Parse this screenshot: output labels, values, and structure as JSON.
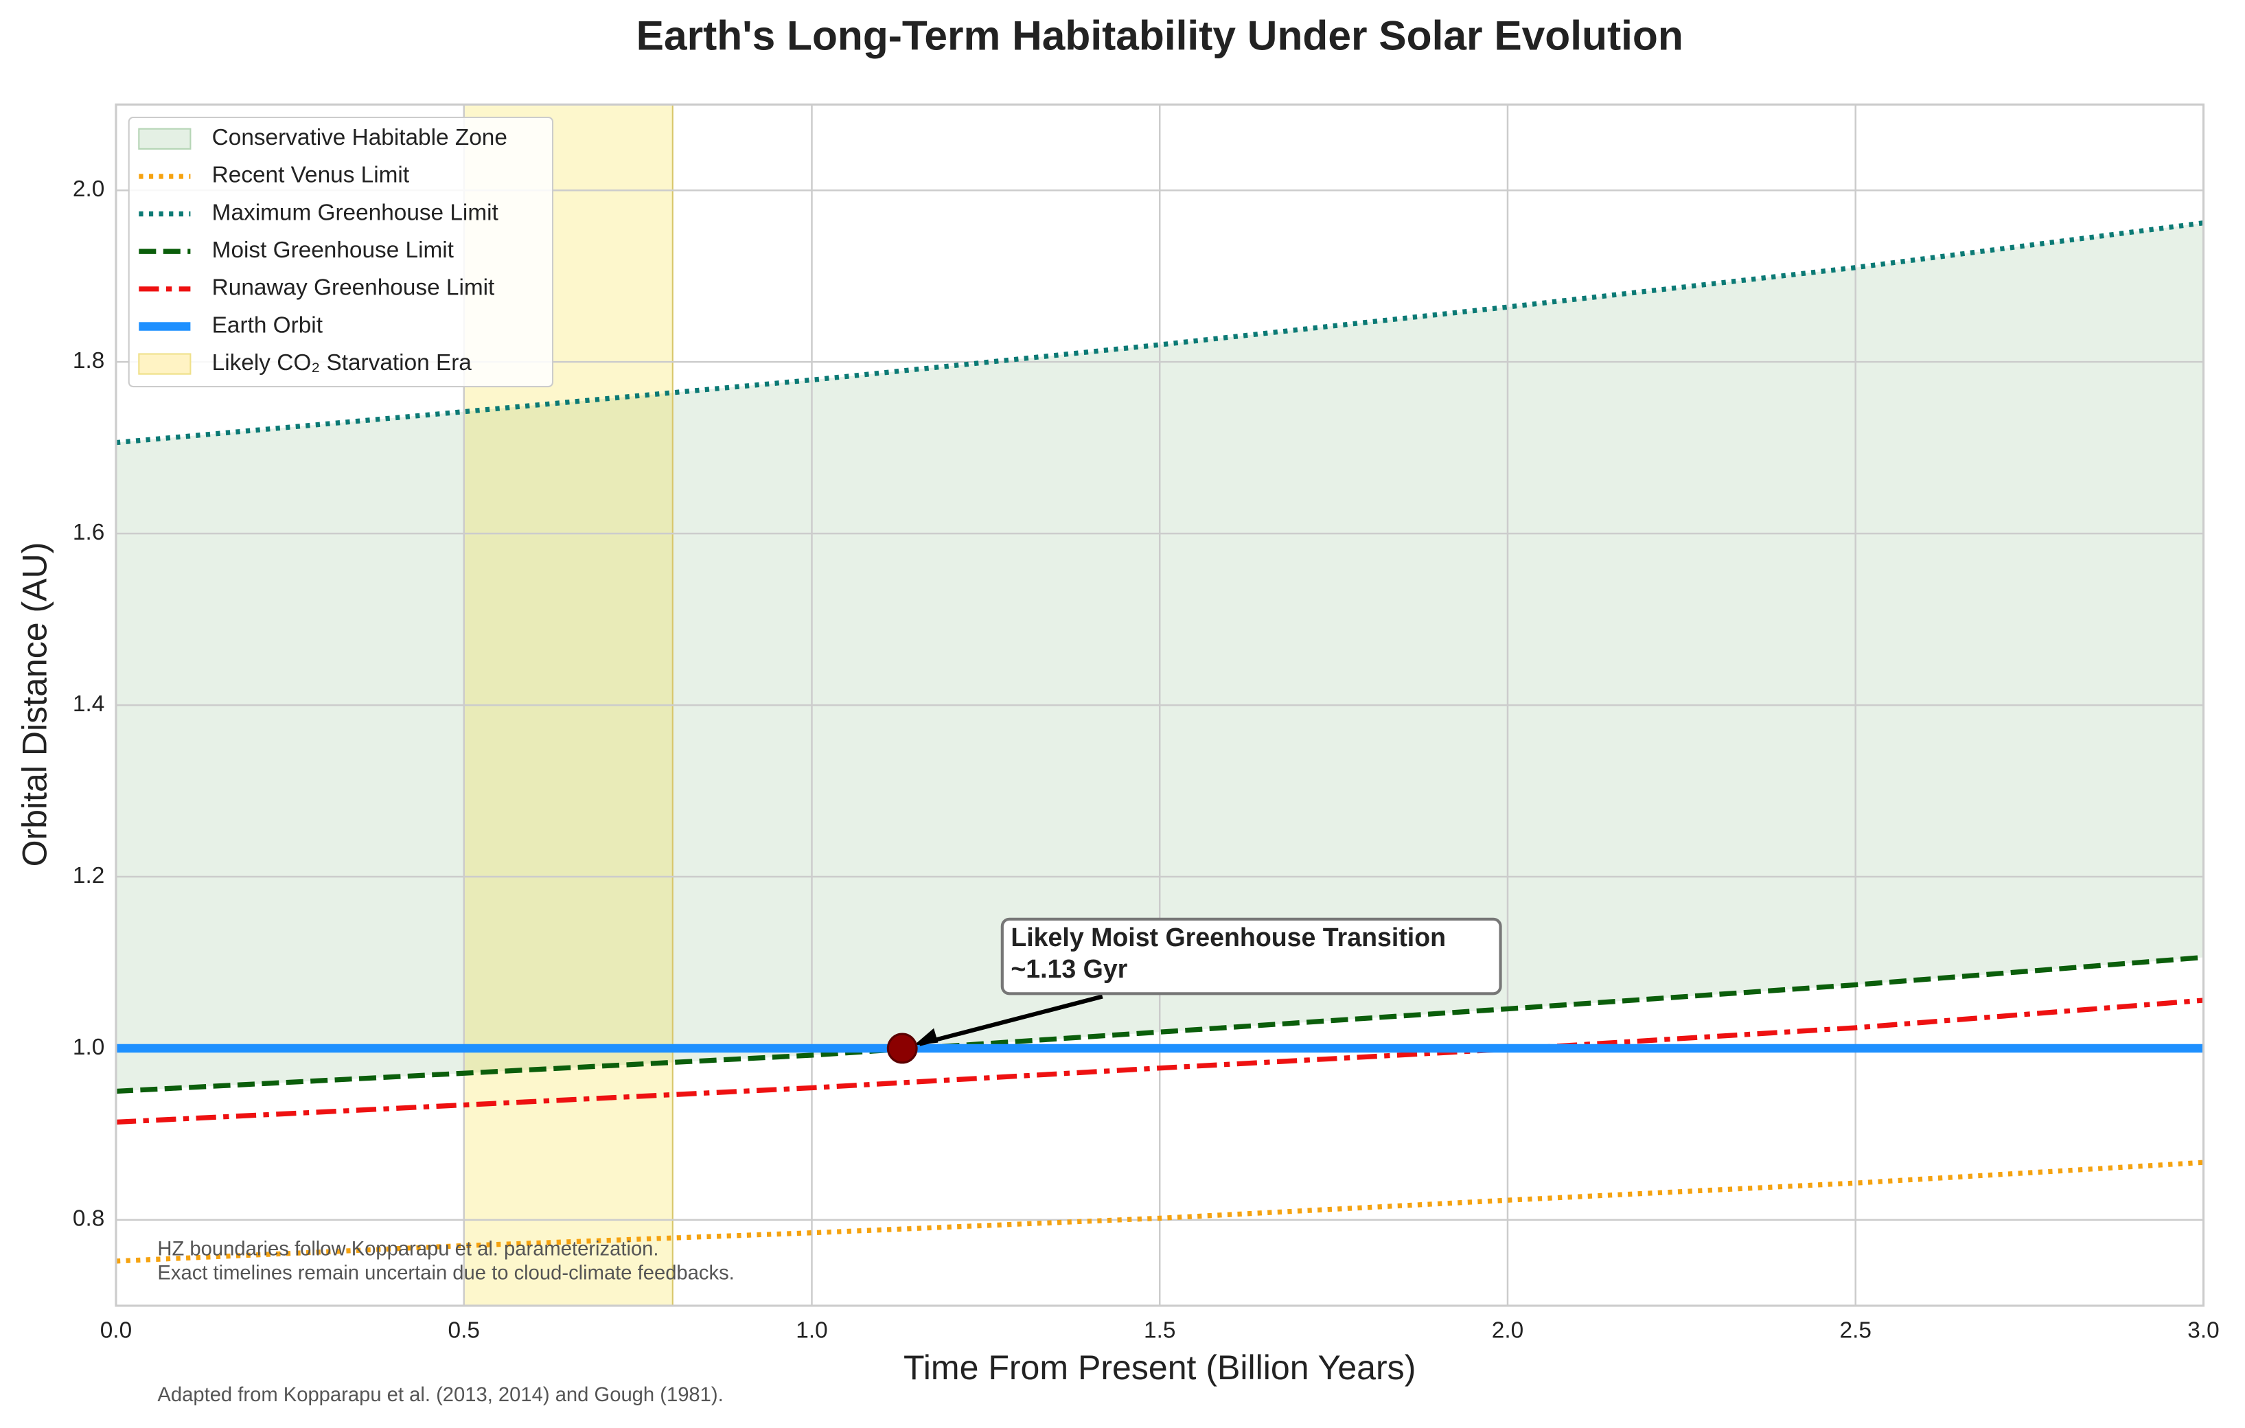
{
  "chart_data": {
    "type": "line",
    "title": "Earth's Long-Term Habitability Under Solar Evolution",
    "xlabel": "Time From Present (Billion Years)",
    "ylabel": "Orbital Distance (AU)",
    "x": [
      0,
      0.5,
      1.0,
      1.5,
      2.0,
      2.5,
      3.0
    ],
    "xlim": [
      0,
      3
    ],
    "ylim": [
      0.7,
      2.1
    ],
    "xticks": [
      {
        "value": 0,
        "label": "0.0"
      },
      0.5,
      {
        "value": 1,
        "label": "1.0"
      },
      1.5,
      {
        "value": 2,
        "label": "2.0"
      },
      2.5,
      {
        "value": 3,
        "label": "3.0"
      }
    ],
    "yticks": [
      0.8,
      {
        "value": 1,
        "label": "1.0"
      },
      1.2,
      1.4,
      1.6,
      1.8,
      {
        "value": 2,
        "label": "2.0"
      }
    ],
    "grid": true,
    "legend": "upper left",
    "fill": {
      "name": "Conservative Habitable Zone",
      "color": "#e4f0e4",
      "between": [
        "Moist Greenhouse Limit",
        "Maximum Greenhouse Limit"
      ]
    },
    "series": [
      {
        "name": "Recent Venus Limit",
        "color": "#f5a20f",
        "style": "dotted",
        "values": [
          0.752,
          0.77,
          0.785,
          0.802,
          0.823,
          0.843,
          0.867
        ]
      },
      {
        "name": "Maximum Greenhouse Limit",
        "color": "#0b7a75",
        "style": "dotted",
        "values": [
          1.706,
          1.742,
          1.779,
          1.82,
          1.864,
          1.91,
          1.962
        ]
      },
      {
        "name": "Moist Greenhouse Limit",
        "color": "#0b5e0b",
        "style": "dashed",
        "values": [
          0.95,
          0.971,
          0.992,
          1.019,
          1.046,
          1.074,
          1.106
        ]
      },
      {
        "name": "Runaway Greenhouse Limit",
        "color": "#ee1111",
        "style": "dashdot",
        "values": [
          0.914,
          0.934,
          0.954,
          0.977,
          0.999,
          1.024,
          1.056
        ]
      },
      {
        "name": "Earth Orbit",
        "color": "#1e90ff",
        "style": "solid",
        "values": [
          1.0,
          1.0,
          1.0,
          1.0,
          1.0,
          1.0,
          1.0
        ]
      }
    ],
    "span": {
      "name": "Likely CO₂ Starvation Era",
      "color": "#fff3c4",
      "xrange": [
        0.5,
        0.8
      ]
    },
    "annotation": {
      "text": [
        "Likely Moist Greenhouse Transition",
        "~1.13 Gyr"
      ],
      "x": 1.13,
      "y": 1.0
    },
    "notes": [
      "HZ boundaries follow Kopparapu et al. parameterization.",
      "Exact timelines remain uncertain due to cloud-climate feedbacks."
    ],
    "source": "Adapted from Kopparapu et al. (2013, 2014) and Gough (1981)."
  }
}
